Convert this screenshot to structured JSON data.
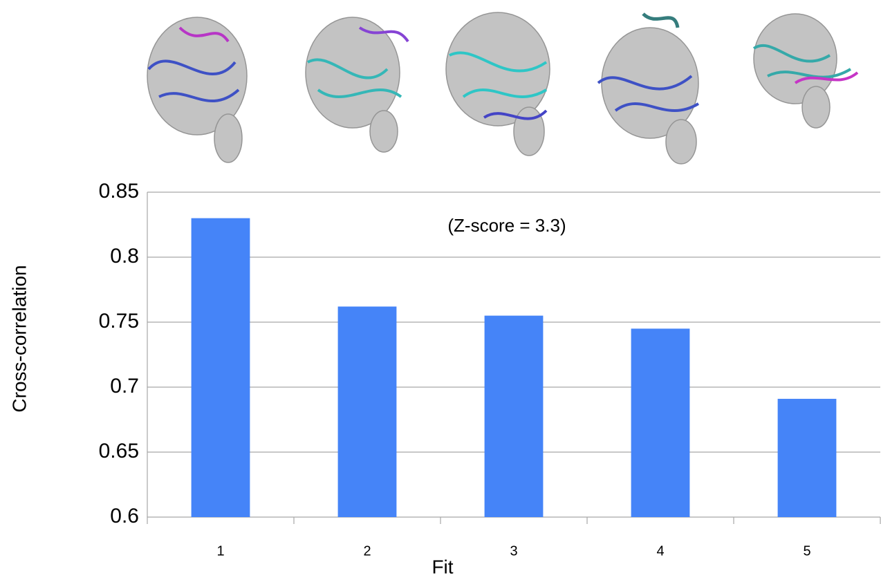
{
  "chart_data": {
    "type": "bar",
    "annotation": "(Z-score = 3.3)",
    "x_label": "Fit",
    "y_label": "Cross-correlation",
    "categories": [
      "1",
      "2",
      "3",
      "4",
      "5"
    ],
    "values": [
      0.83,
      0.762,
      0.755,
      0.745,
      0.691
    ],
    "color": "#4584f8",
    "ylim": [
      0.6,
      0.85
    ],
    "yticks": [
      0.6,
      0.65,
      0.7,
      0.75,
      0.8,
      0.85
    ],
    "grid": true
  }
}
